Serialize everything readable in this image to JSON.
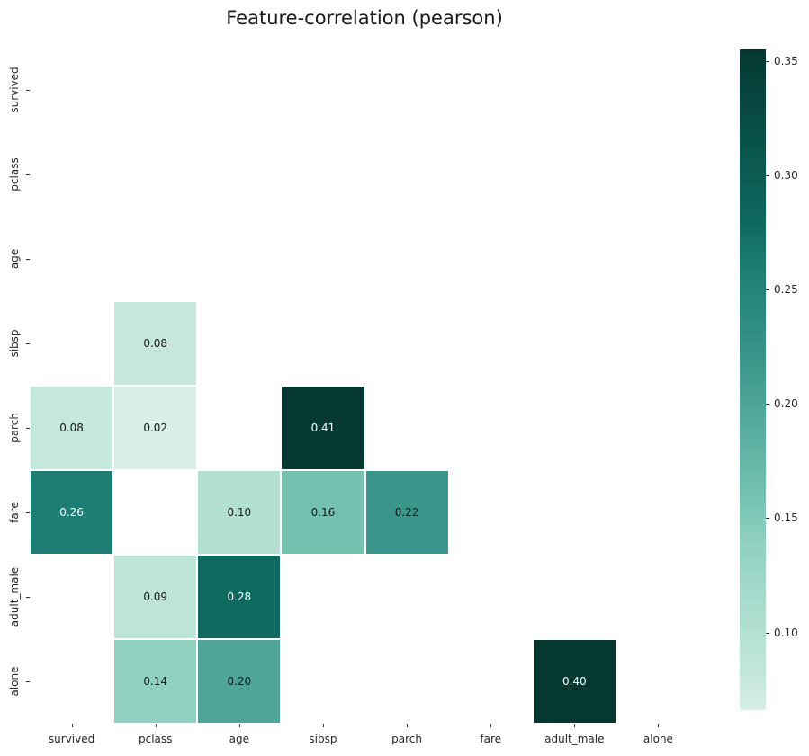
{
  "chart_data": {
    "type": "heatmap",
    "title": "Feature-correlation (pearson)",
    "categories": [
      "survived",
      "pclass",
      "age",
      "sibsp",
      "parch",
      "fare",
      "adult_male",
      "alone"
    ],
    "cells": [
      {
        "row": "sibsp",
        "col": "pclass",
        "value": 0.08
      },
      {
        "row": "parch",
        "col": "survived",
        "value": 0.08
      },
      {
        "row": "parch",
        "col": "pclass",
        "value": 0.02
      },
      {
        "row": "parch",
        "col": "sibsp",
        "value": 0.41
      },
      {
        "row": "fare",
        "col": "survived",
        "value": 0.26
      },
      {
        "row": "fare",
        "col": "age",
        "value": 0.1
      },
      {
        "row": "fare",
        "col": "sibsp",
        "value": 0.16
      },
      {
        "row": "fare",
        "col": "parch",
        "value": 0.22
      },
      {
        "row": "adult_male",
        "col": "pclass",
        "value": 0.09
      },
      {
        "row": "adult_male",
        "col": "age",
        "value": 0.28
      },
      {
        "row": "alone",
        "col": "pclass",
        "value": 0.14
      },
      {
        "row": "alone",
        "col": "age",
        "value": 0.2
      },
      {
        "row": "alone",
        "col": "adult_male",
        "value": 0.4
      }
    ],
    "colorbar": {
      "position": "right",
      "tick_labels": [
        "0.35",
        "0.30",
        "0.25",
        "0.20",
        "0.15",
        "0.10"
      ],
      "tick_values": [
        0.35,
        0.3,
        0.25,
        0.2,
        0.15,
        0.1
      ],
      "vmin": 0.066,
      "vmax": 0.355
    },
    "colormap_stops": [
      {
        "t": 0.0,
        "color": "#d8eee8"
      },
      {
        "t": 0.05,
        "color": "#c5e7dc"
      },
      {
        "t": 0.12,
        "color": "#b2e0d3"
      },
      {
        "t": 0.26,
        "color": "#8ed0bf"
      },
      {
        "t": 0.33,
        "color": "#72c0af"
      },
      {
        "t": 0.46,
        "color": "#4fa699"
      },
      {
        "t": 0.53,
        "color": "#3b968a"
      },
      {
        "t": 0.67,
        "color": "#1e7d72"
      },
      {
        "t": 0.74,
        "color": "#0e695f"
      },
      {
        "t": 1.0,
        "color": "#043831"
      }
    ],
    "white_text_threshold": 0.6,
    "text_colors": {
      "dark": "#151515",
      "light": "#ffffff"
    },
    "grid": false,
    "xlabel": "",
    "ylabel": ""
  }
}
